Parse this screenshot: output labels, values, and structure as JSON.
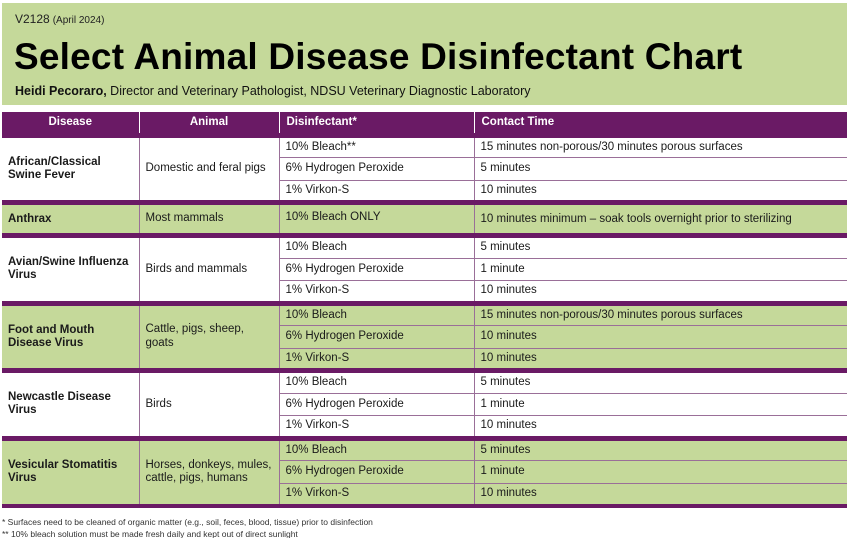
{
  "header": {
    "code": "V2128",
    "date": "(April 2024)",
    "title": "Select Animal Disease Disinfectant Chart",
    "author_name": "Heidi Pecoraro,",
    "author_role": " Director and Veterinary Pathologist, NDSU Veterinary Diagnostic Laboratory"
  },
  "table": {
    "columns": [
      "Disease",
      "Animal",
      "Disinfectant*",
      "Contact Time"
    ],
    "groups": [
      {
        "disease": "African/Classical Swine Fever",
        "animal": "Domestic and feral pigs",
        "rows": [
          {
            "disinfectant": "10% Bleach**",
            "contact": "15 minutes non-porous/30 minutes porous surfaces"
          },
          {
            "disinfectant": "6% Hydrogen Peroxide",
            "contact": "5 minutes"
          },
          {
            "disinfectant": "1% Virkon-S",
            "contact": "10 minutes"
          }
        ]
      },
      {
        "disease": "Anthrax",
        "animal": "Most mammals",
        "rows": [
          {
            "disinfectant": "10% Bleach ONLY",
            "contact": "10 minutes minimum – soak tools overnight prior to sterilizing"
          }
        ]
      },
      {
        "disease": "Avian/Swine Influenza Virus",
        "animal": "Birds and mammals",
        "rows": [
          {
            "disinfectant": "10% Bleach",
            "contact": "5 minutes"
          },
          {
            "disinfectant": "6% Hydrogen Peroxide",
            "contact": "1 minute"
          },
          {
            "disinfectant": "1% Virkon-S",
            "contact": "10 minutes"
          }
        ]
      },
      {
        "disease": "Foot and Mouth Disease Virus",
        "animal": "Cattle, pigs, sheep, goats",
        "rows": [
          {
            "disinfectant": "10% Bleach",
            "contact": "15 minutes non-porous/30 minutes porous surfaces"
          },
          {
            "disinfectant": "6% Hydrogen Peroxide",
            "contact": "10 minutes"
          },
          {
            "disinfectant": "1% Virkon-S",
            "contact": "10 minutes"
          }
        ]
      },
      {
        "disease": "Newcastle Disease Virus",
        "animal": "Birds",
        "rows": [
          {
            "disinfectant": "10% Bleach",
            "contact": "5 minutes"
          },
          {
            "disinfectant": "6% Hydrogen Peroxide",
            "contact": "1 minute"
          },
          {
            "disinfectant": "1% Virkon-S",
            "contact": "10 minutes"
          }
        ]
      },
      {
        "disease": "Vesicular Stomatitis Virus",
        "animal": "Horses, donkeys, mules, cattle, pigs, humans",
        "rows": [
          {
            "disinfectant": "10% Bleach",
            "contact": "5 minutes"
          },
          {
            "disinfectant": "6% Hydrogen Peroxide",
            "contact": "1 minute"
          },
          {
            "disinfectant": "1% Virkon-S",
            "contact": "10 minutes"
          }
        ]
      }
    ]
  },
  "footnotes": [
    "* Surfaces need to be cleaned of organic matter (e.g., soil, feces, blood, tissue) prior to disinfection",
    "** 10% bleach solution must be made fresh daily and kept out of direct sunlight"
  ],
  "colors": {
    "purple": "#6a1a65",
    "green": "#c5d99a"
  }
}
